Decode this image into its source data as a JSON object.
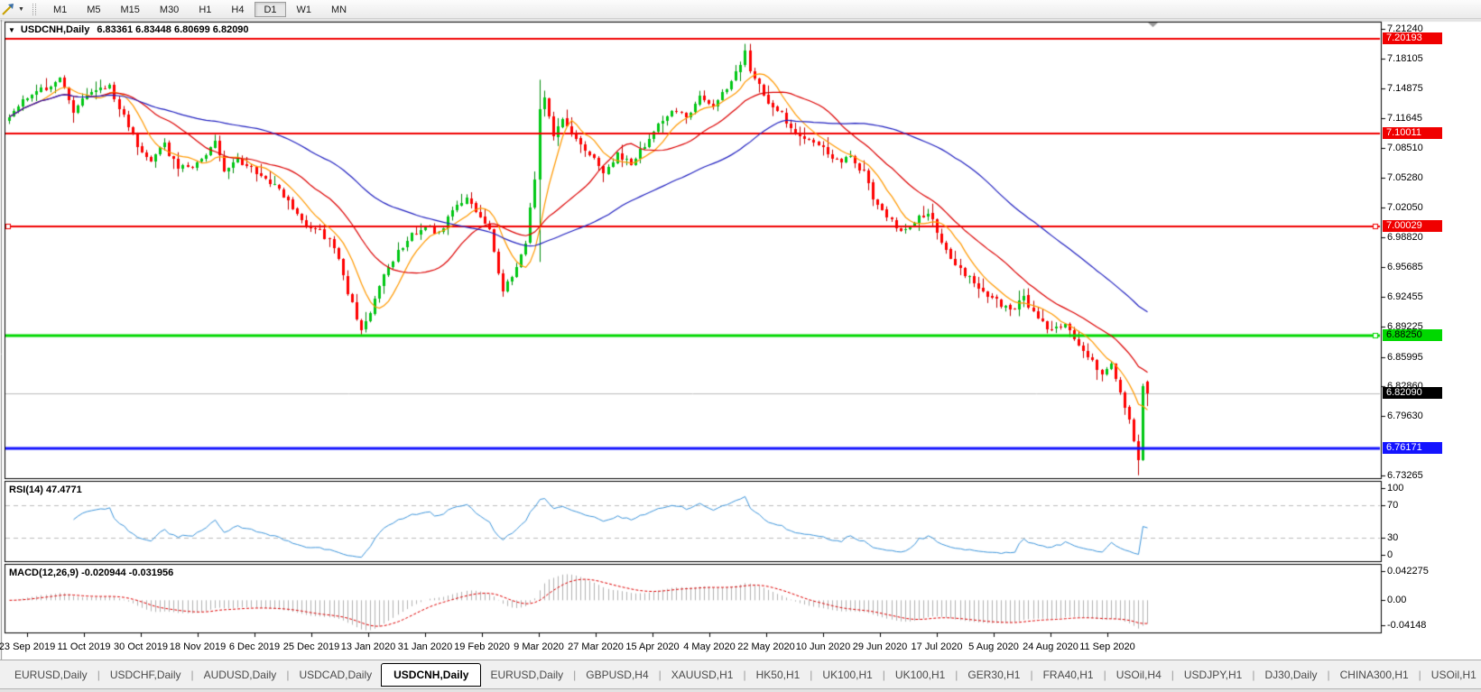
{
  "window": {
    "title_symbol": "USDCNH,Daily",
    "title_quotes": "6.83361 6.83448 6.80699 6.82090"
  },
  "toolbar": {
    "timeframes": [
      "M1",
      "M5",
      "M15",
      "M30",
      "H1",
      "H4",
      "D1",
      "W1",
      "MN"
    ],
    "active_timeframe": "D1"
  },
  "price_axis": {
    "min": 6.7295,
    "max": 7.2195,
    "ticks": [
      7.2124,
      7.18105,
      7.14875,
      7.11645,
      7.0851,
      7.0528,
      7.0205,
      6.9882,
      6.95685,
      6.92455,
      6.89225,
      6.85995,
      6.8286,
      6.7963,
      6.73265
    ],
    "badges": [
      {
        "label": "7.20193",
        "price": 7.20193,
        "bg": "#f00000",
        "fg": "#ffffff"
      },
      {
        "label": "7.10011",
        "price": 7.10011,
        "bg": "#f00000",
        "fg": "#ffffff"
      },
      {
        "label": "7.00029",
        "price": 7.00029,
        "bg": "#f00000",
        "fg": "#ffffff"
      },
      {
        "label": "6.88250",
        "price": 6.8825,
        "bg": "#00d800",
        "fg": "#000000"
      },
      {
        "label": "6.82090",
        "price": 6.8209,
        "bg": "#000000",
        "fg": "#ffffff"
      },
      {
        "label": "6.76171",
        "price": 6.76171,
        "bg": "#1414ff",
        "fg": "#ffffff"
      }
    ]
  },
  "levels": [
    {
      "price": 7.20193,
      "color": "#f00000",
      "width": 2,
      "handles": []
    },
    {
      "price": 7.10011,
      "color": "#f00000",
      "width": 2,
      "handles": []
    },
    {
      "price": 7.00029,
      "color": "#f00000",
      "width": 2,
      "handles": [
        "left",
        "right"
      ]
    },
    {
      "price": 6.8825,
      "color": "#00d800",
      "width": 3,
      "handles": [
        "right"
      ]
    },
    {
      "price": 6.76171,
      "color": "#1414ff",
      "width": 3,
      "handles": []
    }
  ],
  "current_price": {
    "value": 6.8209,
    "line_color": "#bcbcbc"
  },
  "rsi": {
    "label": "RSI(14) 47.4771",
    "period": 14,
    "value": "47.4771",
    "axis_labels": [
      100,
      70,
      30,
      0
    ],
    "guide_levels": [
      70,
      30
    ],
    "line_color": "#3e96dc",
    "guide_color": "#bdbdbd"
  },
  "macd": {
    "label": "MACD(12,26,9) -0.020944 -0.031956",
    "macd_value": "-0.020944",
    "signal_value": "-0.031956",
    "axis_labels": [
      "0.042275",
      "0.00",
      "-0.04148"
    ],
    "axis_values": [
      0.042275,
      0,
      -0.04148
    ],
    "hist_color": "#b2b2b2",
    "signal_color": "#e00000"
  },
  "time_axis": {
    "labels": [
      "23 Sep 2019",
      "11 Oct 2019",
      "30 Oct 2019",
      "18 Nov 2019",
      "6 Dec 2019",
      "25 Dec 2019",
      "13 Jan 2020",
      "31 Jan 2020",
      "19 Feb 2020",
      "9 Mar 2020",
      "27 Mar 2020",
      "15 Apr 2020",
      "4 May 2020",
      "22 May 2020",
      "10 Jun 2020",
      "29 Jun 2020",
      "17 Jul 2020",
      "5 Aug 2020",
      "24 Aug 2020",
      "11 Sep 2020"
    ]
  },
  "tabs": {
    "items": [
      "EURUSD,Daily",
      "USDCHF,Daily",
      "AUDUSD,Daily",
      "USDCAD,Daily",
      "USDCNH,Daily",
      "EURUSD,Daily",
      "GBPUSD,H4",
      "XAUUSD,H1",
      "HK50,H1",
      "UK100,H1",
      "UK100,H1",
      "GER30,H1",
      "FRA40,H1",
      "USOil,H4",
      "USDJPY,H1",
      "DJ30,Daily",
      "CHINA300,H1",
      "USOil,H1"
    ],
    "active_index": 4,
    "left_arrow": "◄",
    "right_arrow": "►"
  },
  "chart_data": {
    "type": "candlestick",
    "symbol": "USDCNH",
    "timeframe": "Daily",
    "title": "USDCNH,Daily",
    "last_candle_ohlc": {
      "open": 6.83361,
      "high": 6.83448,
      "low": 6.80699,
      "close": 6.8209
    },
    "horizontal_levels": [
      7.20193,
      7.10011,
      7.00029,
      6.8825,
      6.76171
    ],
    "x_start_label": "23 Sep 2019",
    "x_end_label": "11 Sep 2020",
    "y_range_visible": [
      6.7295,
      7.2195
    ],
    "indicators": [
      "RSI(14)=47.4771",
      "MACD(12,26,9)=-0.020944/-0.031956"
    ],
    "candle_count": 250,
    "up_color": "#00c814",
    "up_border": "#008c0a",
    "down_color": "#ff0000",
    "down_border": "#c40000",
    "moving_averages": [
      {
        "period": 8,
        "color": "#ff9900"
      },
      {
        "period": 21,
        "color": "#dd0000"
      },
      {
        "period": 55,
        "color": "#2020c0"
      }
    ],
    "price_keypoints": [
      [
        0,
        7.118
      ],
      [
        4,
        7.14
      ],
      [
        8,
        7.15
      ],
      [
        11,
        7.158
      ],
      [
        14,
        7.125
      ],
      [
        18,
        7.147
      ],
      [
        22,
        7.15
      ],
      [
        25,
        7.118
      ],
      [
        28,
        7.085
      ],
      [
        31,
        7.072
      ],
      [
        34,
        7.088
      ],
      [
        37,
        7.062
      ],
      [
        41,
        7.068
      ],
      [
        45,
        7.09
      ],
      [
        47,
        7.062
      ],
      [
        50,
        7.072
      ],
      [
        54,
        7.058
      ],
      [
        58,
        7.045
      ],
      [
        62,
        7.02
      ],
      [
        65,
        7.002
      ],
      [
        68,
        6.995
      ],
      [
        71,
        6.978
      ],
      [
        74,
        6.93
      ],
      [
        77,
        6.888
      ],
      [
        79,
        6.905
      ],
      [
        82,
        6.95
      ],
      [
        85,
        6.972
      ],
      [
        88,
        6.99
      ],
      [
        91,
        7.003
      ],
      [
        94,
        6.992
      ],
      [
        97,
        7.018
      ],
      [
        100,
        7.03
      ],
      [
        103,
        7.012
      ],
      [
        105,
        6.995
      ],
      [
        108,
        6.932
      ],
      [
        110,
        6.945
      ],
      [
        113,
        6.985
      ],
      [
        115,
        7.05
      ],
      [
        116,
        7.125
      ],
      [
        117,
        7.14
      ],
      [
        119,
        7.1
      ],
      [
        121,
        7.115
      ],
      [
        124,
        7.095
      ],
      [
        127,
        7.078
      ],
      [
        130,
        7.06
      ],
      [
        133,
        7.078
      ],
      [
        136,
        7.068
      ],
      [
        139,
        7.088
      ],
      [
        142,
        7.108
      ],
      [
        145,
        7.125
      ],
      [
        148,
        7.118
      ],
      [
        151,
        7.138
      ],
      [
        154,
        7.128
      ],
      [
        157,
        7.15
      ],
      [
        159,
        7.165
      ],
      [
        161,
        7.188
      ],
      [
        162,
        7.17
      ],
      [
        164,
        7.15
      ],
      [
        166,
        7.132
      ],
      [
        169,
        7.12
      ],
      [
        172,
        7.1
      ],
      [
        175,
        7.092
      ],
      [
        178,
        7.085
      ],
      [
        181,
        7.07
      ],
      [
        184,
        7.075
      ],
      [
        187,
        7.058
      ],
      [
        189,
        7.032
      ],
      [
        192,
        7.01
      ],
      [
        195,
        6.996
      ],
      [
        198,
        7.006
      ],
      [
        201,
        7.016
      ],
      [
        204,
        6.985
      ],
      [
        207,
        6.96
      ],
      [
        210,
        6.944
      ],
      [
        213,
        6.93
      ],
      [
        216,
        6.92
      ],
      [
        219,
        6.91
      ],
      [
        222,
        6.924
      ],
      [
        225,
        6.9
      ],
      [
        228,
        6.888
      ],
      [
        231,
        6.894
      ],
      [
        234,
        6.874
      ],
      [
        237,
        6.855
      ],
      [
        239,
        6.841
      ],
      [
        241,
        6.85
      ],
      [
        243,
        6.824
      ],
      [
        245,
        6.79
      ],
      [
        246,
        6.766
      ],
      [
        247,
        6.748
      ],
      [
        248,
        6.83
      ],
      [
        249,
        6.8209
      ]
    ],
    "wick_overrides": {
      "116": {
        "high": 7.158,
        "low": 6.962
      },
      "161": {
        "high": 7.1966
      },
      "247": {
        "low": 6.73265
      },
      "249": {
        "open": 6.83361,
        "high": 6.83448,
        "low": 6.80699,
        "close": 6.8209
      }
    }
  }
}
